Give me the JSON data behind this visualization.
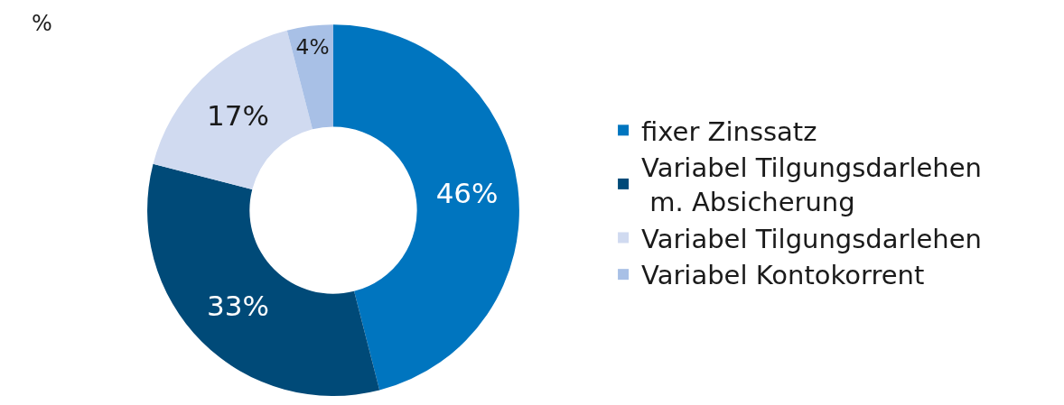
{
  "chart_data": {
    "type": "donut",
    "categories": [
      "fixer Zinssatz",
      "Variabel Tilgungsdarlehen m. Absicherung",
      "Variabel Tilgungsdarlehen",
      "Variabel Kontokorrent"
    ],
    "values": [
      46,
      33,
      17,
      4
    ],
    "colors": [
      "#0075bf",
      "#004a78",
      "#d0daf0",
      "#a8c0e6"
    ],
    "value_labels": [
      "46%",
      "33%",
      "17%",
      "4%"
    ],
    "annotations": [
      "%"
    ],
    "legend": "right"
  }
}
